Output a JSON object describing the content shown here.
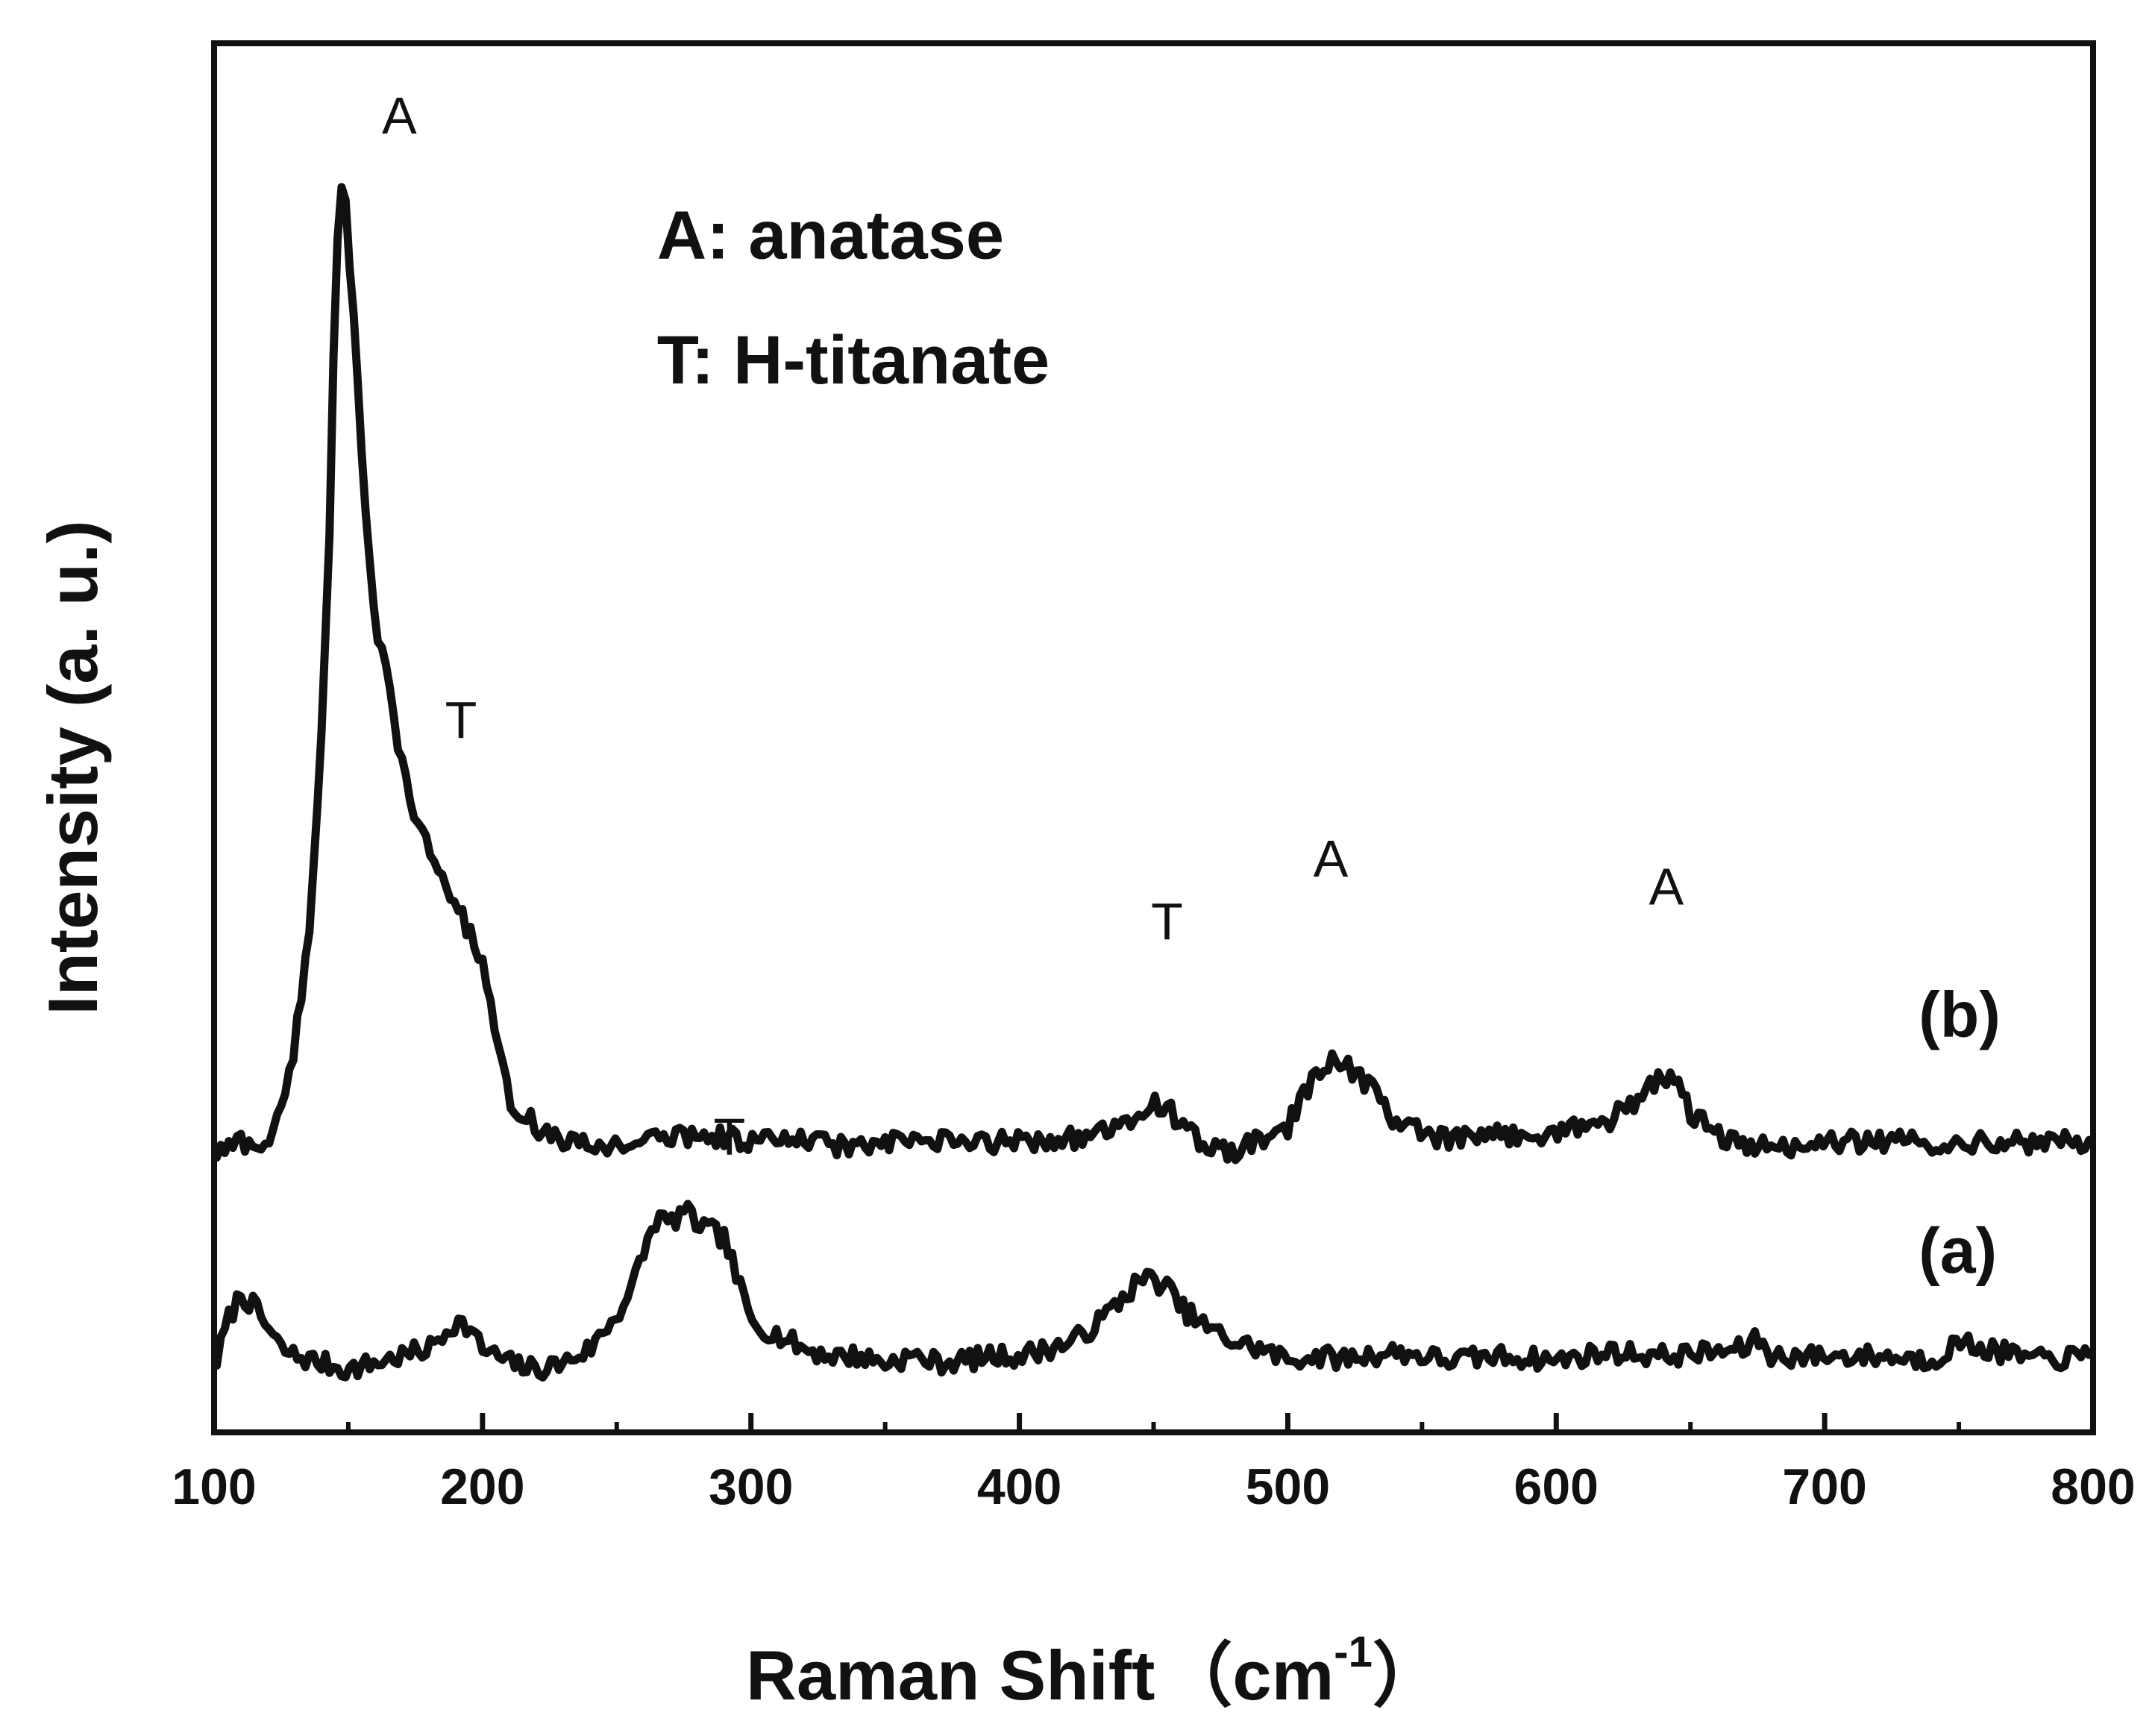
{
  "chart_data": {
    "type": "line",
    "title": "",
    "xlabel": "Raman Shift",
    "xlabel_unit_open": "（",
    "xlabel_unit": "cm",
    "xlabel_unit_sup": "-1",
    "xlabel_unit_close": "）",
    "ylabel": "Intensity (a. u.)",
    "xlim": [
      100,
      800
    ],
    "ylim": [
      0,
      100
    ],
    "x_ticks": [
      100,
      200,
      300,
      400,
      500,
      600,
      700,
      800
    ],
    "x_tick_labels": [
      "100",
      "200",
      "300",
      "400",
      "500",
      "600",
      "700",
      "800"
    ],
    "y_ticks_shown": false,
    "grid": false,
    "legend": {
      "placement": "top-center",
      "entries": [
        "A: anatase",
        "T: H-titanate"
      ]
    },
    "series": [
      {
        "name": "(a)",
        "label_at": {
          "x": 735,
          "y": 11.5
        },
        "x": [
          100,
          105,
          110,
          115,
          120,
          125,
          130,
          140,
          150,
          160,
          170,
          180,
          185,
          190,
          195,
          200,
          210,
          220,
          230,
          240,
          250,
          255,
          260,
          265,
          270,
          275,
          280,
          285,
          290,
          295,
          300,
          310,
          320,
          330,
          340,
          350,
          360,
          370,
          380,
          390,
          400,
          410,
          420,
          430,
          440,
          445,
          450,
          455,
          460,
          470,
          480,
          490,
          500,
          510,
          520,
          540,
          560,
          580,
          600,
          620,
          640,
          660,
          670,
          675,
          680,
          700,
          720,
          740,
          750,
          760,
          780,
          800
        ],
        "y": [
          4.5,
          8,
          10,
          9,
          7.5,
          6,
          5.5,
          5,
          4.5,
          5,
          5.5,
          6,
          7,
          8,
          7.5,
          6,
          5,
          4.5,
          5,
          6,
          8.5,
          10,
          13,
          15.5,
          15,
          16,
          15,
          14.5,
          14,
          11,
          8,
          7,
          6,
          5.5,
          5.5,
          5,
          5.5,
          5,
          5.2,
          5.5,
          5.5,
          6,
          6.5,
          8,
          10,
          11,
          11,
          10.5,
          9,
          7.5,
          6.5,
          6,
          5.2,
          5.5,
          5.3,
          5.8,
          5.2,
          5.5,
          5.2,
          5.8,
          5.5,
          5.8,
          6,
          6.8,
          5.5,
          5.5,
          5.5,
          5.2,
          6.5,
          6,
          5.2,
          5.5
        ]
      },
      {
        "name": "(b)",
        "label_at": {
          "x": 735,
          "y": 28.5
        },
        "x": [
          100,
          105,
          110,
          115,
          120,
          125,
          130,
          135,
          140,
          143,
          145,
          147,
          149,
          152,
          155,
          158,
          160,
          165,
          170,
          175,
          180,
          185,
          190,
          195,
          200,
          205,
          210,
          220,
          230,
          240,
          260,
          280,
          300,
          320,
          340,
          360,
          380,
          400,
          420,
          430,
          440,
          445,
          450,
          455,
          460,
          470,
          480,
          490,
          500,
          505,
          510,
          515,
          518,
          522,
          530,
          540,
          550,
          560,
          570,
          580,
          590,
          600,
          610,
          620,
          630,
          635,
          640,
          645,
          650,
          660,
          670,
          680,
          700,
          720,
          740,
          760,
          780,
          800
        ],
        "y": [
          20,
          20.5,
          21,
          20.5,
          21,
          23,
          28,
          35,
          50,
          65,
          82,
          90,
          89,
          80,
          70,
          62,
          58,
          54,
          48,
          44,
          42,
          40,
          38,
          36,
          34,
          28,
          24,
          22,
          21,
          20.5,
          21,
          21.5,
          21,
          21,
          20.5,
          21,
          20.8,
          21,
          21.2,
          21.5,
          22,
          23,
          23.8,
          23.5,
          22,
          20.5,
          20.2,
          21,
          22,
          24,
          25.5,
          26.5,
          27,
          26.5,
          25,
          22.5,
          21.5,
          21,
          21.2,
          21.5,
          21.3,
          21.8,
          22,
          22.5,
          24,
          25,
          25.5,
          25,
          23,
          21.5,
          20.5,
          20.5,
          20.8,
          21,
          20.8,
          21,
          20.8,
          21
        ]
      }
    ],
    "annotations": [
      {
        "text": "A",
        "x": 169,
        "y": 93.5
      },
      {
        "text": "T",
        "x": 192,
        "y": 50
      },
      {
        "text": "T",
        "x": 455,
        "y": 35.5
      },
      {
        "text": "A",
        "x": 516,
        "y": 40
      },
      {
        "text": "A",
        "x": 641,
        "y": 38
      },
      {
        "text": "T",
        "x": 292,
        "y": 20
      }
    ]
  }
}
